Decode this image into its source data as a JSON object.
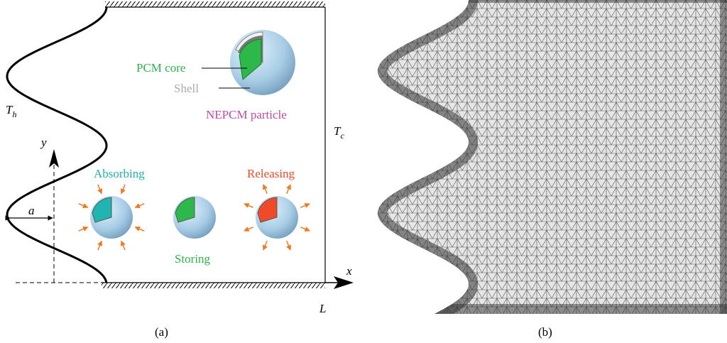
{
  "panel_a": {
    "particle_labels": {
      "core": "PCM core",
      "shell": "Shell",
      "particle": "NEPCM particle"
    },
    "hot_wall": {
      "symbol": "T",
      "subscript": "h"
    },
    "cold_wall": {
      "symbol": "T",
      "subscript": "c"
    },
    "axes": {
      "y": "y",
      "x": "x",
      "amplitude": "a",
      "length": "L"
    },
    "states": {
      "absorbing": "Absorbing",
      "storing": "Storing",
      "releasing": "Releasing"
    },
    "caption": "(a)"
  },
  "panel_b": {
    "caption": "(b)"
  }
}
